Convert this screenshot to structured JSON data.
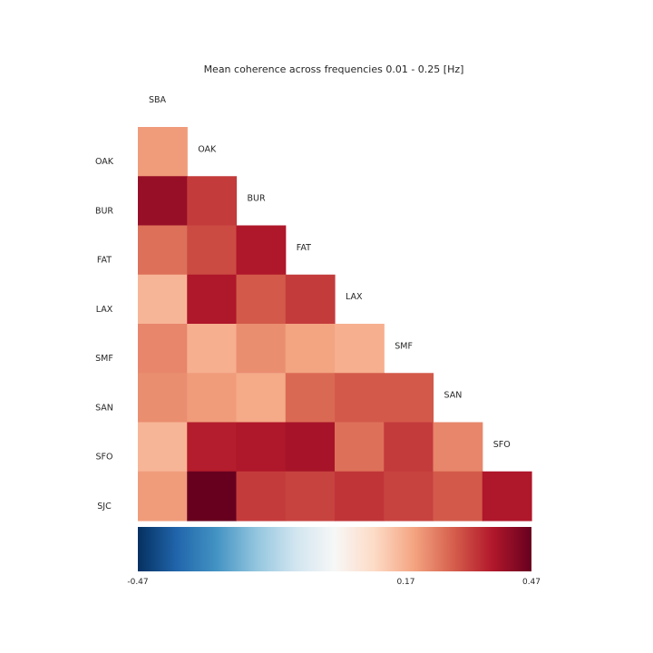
{
  "chart_data": {
    "type": "heatmap",
    "title": "Mean coherence across frequencies 0.01 - 0.25 [Hz]",
    "row_labels": [
      "OAK",
      "BUR",
      "FAT",
      "LAX",
      "SMF",
      "SAN",
      "SFO",
      "SJC"
    ],
    "col_labels": [
      "SBA",
      "OAK",
      "BUR",
      "FAT",
      "LAX",
      "SMF",
      "SAN",
      "SFO"
    ],
    "matrix": [
      [
        0.2
      ],
      [
        0.41,
        0.33
      ],
      [
        0.26,
        0.31,
        0.38
      ],
      [
        0.16,
        0.38,
        0.29,
        0.33
      ],
      [
        0.23,
        0.17,
        0.22,
        0.19,
        0.17
      ],
      [
        0.22,
        0.2,
        0.18,
        0.27,
        0.29,
        0.29
      ],
      [
        0.16,
        0.37,
        0.38,
        0.39,
        0.26,
        0.33,
        0.23
      ],
      [
        0.2,
        0.47,
        0.33,
        0.32,
        0.34,
        0.32,
        0.29,
        0.38
      ]
    ],
    "colorbar": {
      "vmin": -0.47,
      "vmax": 0.47,
      "colormap": "RdBu_r",
      "ticks": [
        "-0.47",
        "0.17",
        "0.47"
      ],
      "tick_values": [
        -0.47,
        0.17,
        0.47
      ]
    },
    "colormap_stops": [
      "#053061",
      "#2166ac",
      "#4393c3",
      "#92c5de",
      "#d1e5f0",
      "#f7f7f7",
      "#fddbc7",
      "#f4a582",
      "#d6604d",
      "#b2182b",
      "#67001f"
    ]
  }
}
